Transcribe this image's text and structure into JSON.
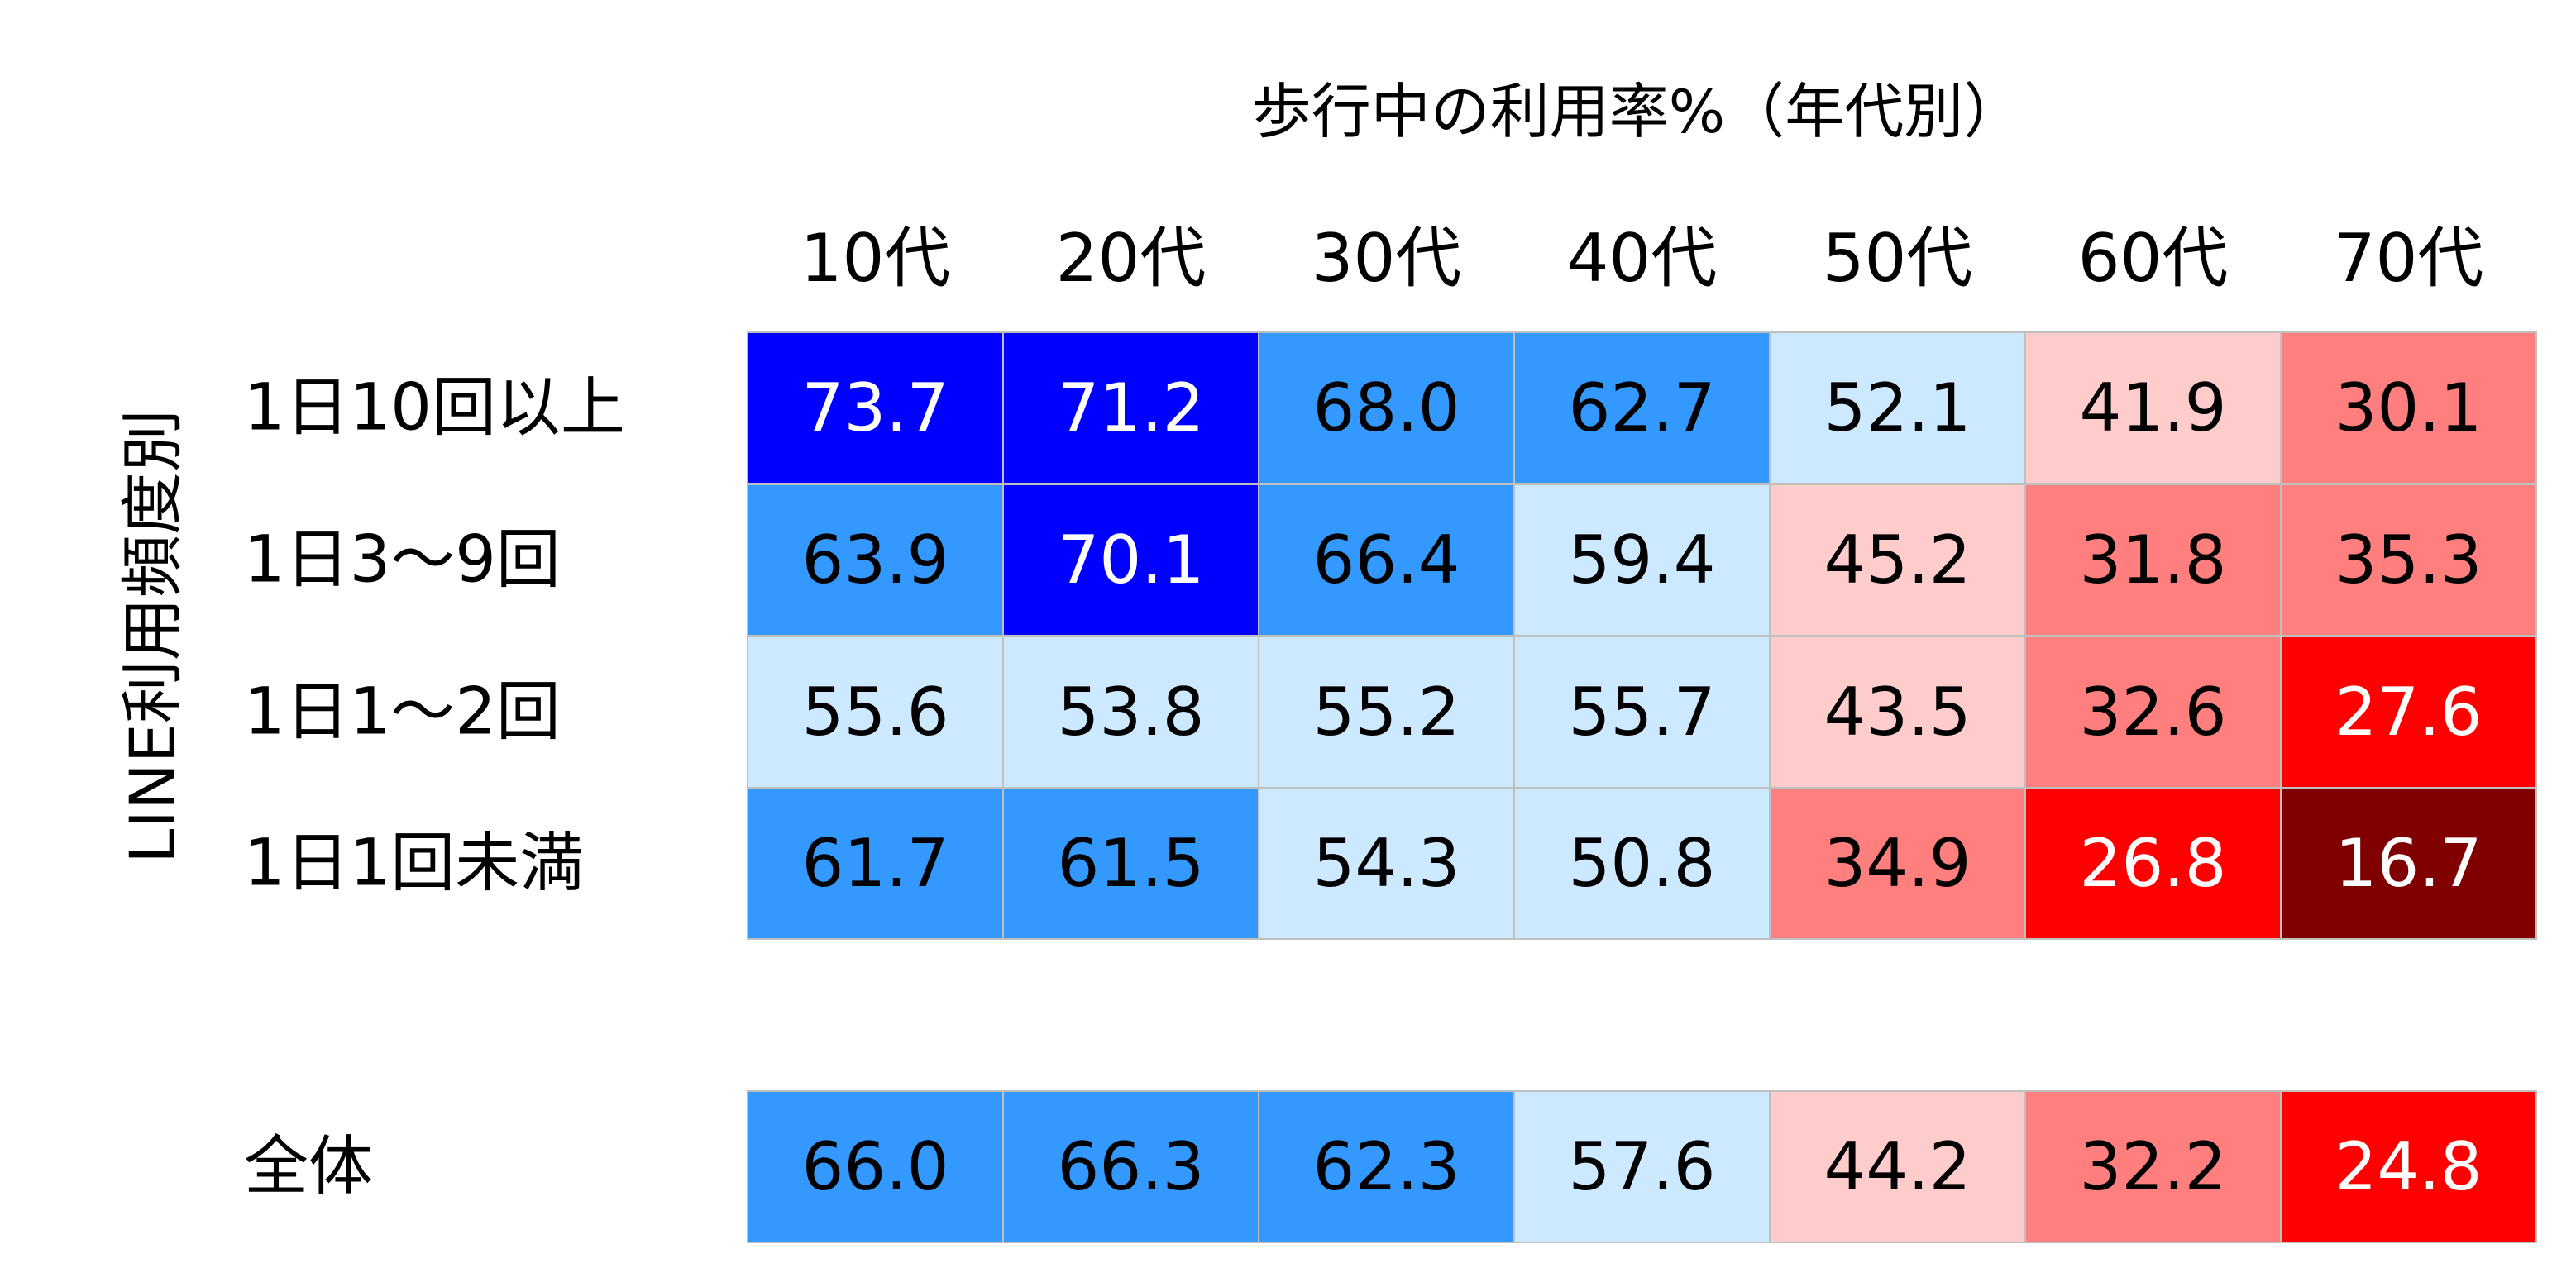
{
  "chart_data": {
    "type": "heatmap",
    "title": "歩行中の利用率%（年代別）",
    "ylabel": "LINE利用頻度別",
    "columns": [
      "10代",
      "20代",
      "30代",
      "40代",
      "50代",
      "60代",
      "70代"
    ],
    "rows": [
      {
        "label": "1日10回以上",
        "values": [
          73.7,
          71.2,
          68.0,
          62.7,
          52.1,
          41.9,
          30.1
        ]
      },
      {
        "label": "1日3〜9回",
        "values": [
          63.9,
          70.1,
          66.4,
          59.4,
          45.2,
          31.8,
          35.3
        ]
      },
      {
        "label": "1日1〜2回",
        "values": [
          55.6,
          53.8,
          55.2,
          55.7,
          43.5,
          32.6,
          27.6
        ]
      },
      {
        "label": "1日1回未満",
        "values": [
          61.7,
          61.5,
          54.3,
          50.8,
          34.9,
          26.8,
          16.7
        ]
      }
    ],
    "total_row": {
      "label": "全体",
      "values": [
        66.0,
        66.3,
        62.3,
        57.6,
        44.2,
        32.2,
        24.8
      ]
    },
    "color_scale": [
      {
        "min": 70,
        "fill": "#0000ff",
        "text": "#ffffff"
      },
      {
        "min": 60,
        "fill": "#3399ff",
        "text": "#000000"
      },
      {
        "min": 50,
        "fill": "#cce9ff",
        "text": "#000000"
      },
      {
        "min": 40,
        "fill": "#ffcccc",
        "text": "#000000"
      },
      {
        "min": 28,
        "fill": "#ff7f7f",
        "text": "#000000"
      },
      {
        "min": 20,
        "fill": "#ff0000",
        "text": "#ffffff"
      },
      {
        "min": -999,
        "fill": "#800000",
        "text": "#ffffff"
      }
    ],
    "grid_line_color": "#bfbfbf"
  }
}
